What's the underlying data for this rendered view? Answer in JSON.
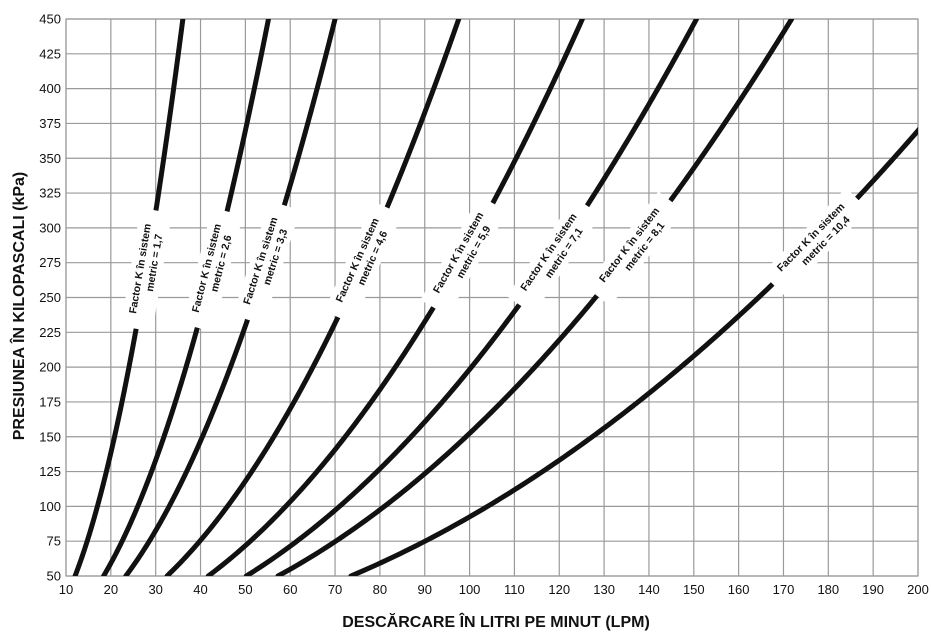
{
  "chart_data": {
    "type": "line",
    "title": "",
    "xlabel": "DESCĂRCARE ÎN LITRI PE MINUT (LPM)",
    "ylabel": "PRESIUNEA ÎN KILOPASCALI (kPa)",
    "xlim": [
      10,
      200
    ],
    "ylim": [
      50,
      450
    ],
    "x_ticks": [
      "10",
      "20",
      "30",
      "40",
      "50",
      "60",
      "70",
      "80",
      "90",
      "100",
      "110",
      "120",
      "130",
      "140",
      "150",
      "160",
      "170",
      "180",
      "190",
      "200"
    ],
    "y_ticks": [
      "50",
      "75",
      "100",
      "125",
      "150",
      "175",
      "200",
      "225",
      "250",
      "275",
      "300",
      "325",
      "350",
      "375",
      "400",
      "425",
      "450"
    ],
    "grid": true,
    "legend": "none",
    "series": [
      {
        "label_line1": "Factor K în sistem",
        "label_line2": "metric = 1,7",
        "k": 1.7,
        "label_y": 270
      },
      {
        "label_line1": "Factor K în sistem",
        "label_line2": "metric = 2,6",
        "k": 2.6,
        "label_y": 270
      },
      {
        "label_line1": "Factor K în sistem",
        "label_line2": "metric = 3,3",
        "k": 3.3,
        "label_y": 275
      },
      {
        "label_line1": "Factor K în sistem",
        "label_line2": "metric = 4,6",
        "k": 4.6,
        "label_y": 275
      },
      {
        "label_line1": "Factor K în sistem",
        "label_line2": "metric = 5,9",
        "k": 5.9,
        "label_y": 280
      },
      {
        "label_line1": "Factor K în sistem",
        "label_line2": "metric = 7,1",
        "k": 7.1,
        "label_y": 280
      },
      {
        "label_line1": "Factor K în sistem",
        "label_line2": "metric = 8,1",
        "k": 8.1,
        "label_y": 285
      },
      {
        "label_line1": "Factor K în sistem",
        "label_line2": "metric = 10,4",
        "k": 10.4,
        "label_y": 290
      }
    ]
  }
}
